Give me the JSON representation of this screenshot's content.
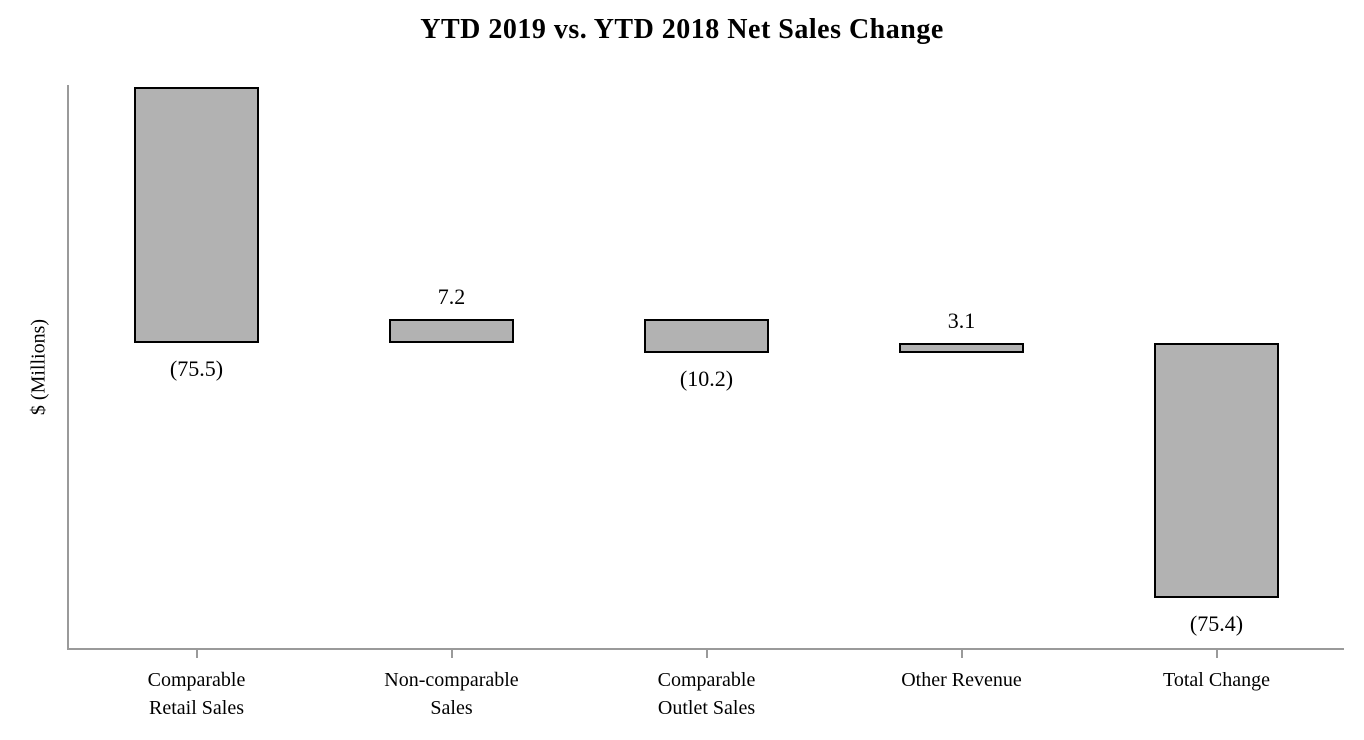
{
  "chart_data": {
    "type": "bar",
    "subtype": "waterfall",
    "title": "YTD 2019 vs. YTD 2018 Net Sales Change",
    "ylabel": "$ (Millions)",
    "xlabel": "",
    "categories": [
      "Comparable\nRetail Sales",
      "Non-comparable\nSales",
      "Comparable\nOutlet Sales",
      "Other Revenue",
      "Total Change"
    ],
    "values": [
      -75.5,
      7.2,
      -10.2,
      3.1,
      -75.4
    ],
    "data_labels": [
      "(75.5)",
      "7.2",
      "(10.2)",
      "3.1",
      "(75.4)"
    ],
    "is_total": [
      false,
      false,
      false,
      false,
      true
    ],
    "grid": false,
    "legend": "none",
    "axis_ticks_labeled": false,
    "colors": {
      "bar_fill": "#b2b2b2",
      "bar_border": "#000000",
      "axis": "#9a9a9a",
      "text": "#000000",
      "background": "#ffffff"
    }
  }
}
